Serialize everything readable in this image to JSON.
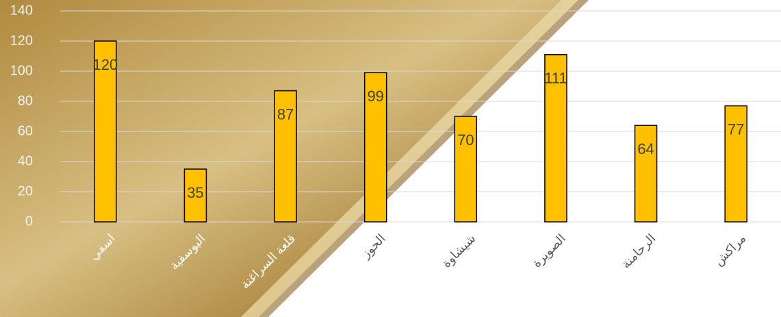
{
  "chart_data": {
    "type": "bar",
    "categories": [
      "اسفي",
      "اليوسفية",
      "قلعة السراغنة",
      "الحوز",
      "شيشاوة",
      "الصويرة",
      "الرحامنة",
      "مراكش"
    ],
    "values": [
      120,
      35,
      87,
      99,
      70,
      111,
      64,
      77
    ],
    "color": "#ffc000",
    "ylim": [
      0,
      140
    ],
    "yticks": [
      0,
      20,
      40,
      60,
      80,
      100,
      120,
      140
    ],
    "grid": true
  }
}
